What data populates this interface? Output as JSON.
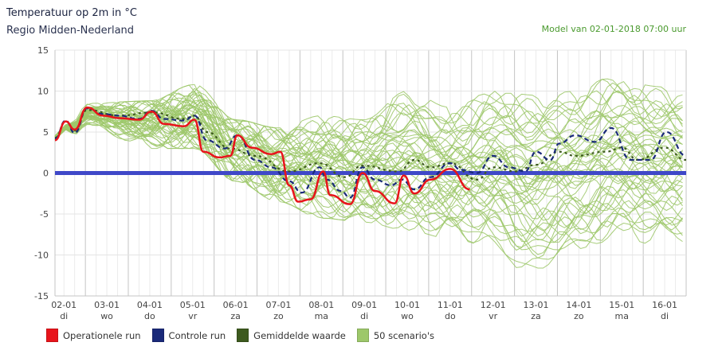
{
  "header": {
    "title": "Temperatuur op 2m in °C",
    "subtitle": "Regio Midden-Nederland",
    "model_run": "Model van 02-01-2018 07:00 uur"
  },
  "chart_data": {
    "type": "line",
    "ylim": [
      -15,
      15
    ],
    "yticks": [
      15,
      10,
      5,
      0,
      -5,
      -10,
      -15
    ],
    "xlim": [
      "02-01 07:00",
      "17-01 00:00"
    ],
    "grid": true,
    "legend_placement": "bottom-left",
    "xticks": [
      {
        "date": "02-01",
        "day": "di"
      },
      {
        "date": "03-01",
        "day": "wo"
      },
      {
        "date": "04-01",
        "day": "do"
      },
      {
        "date": "05-01",
        "day": "vr"
      },
      {
        "date": "06-01",
        "day": "za"
      },
      {
        "date": "07-01",
        "day": "zo"
      },
      {
        "date": "08-01",
        "day": "ma"
      },
      {
        "date": "09-01",
        "day": "di"
      },
      {
        "date": "10-01",
        "day": "wo"
      },
      {
        "date": "11-01",
        "day": "do"
      },
      {
        "date": "12-01",
        "day": "vr"
      },
      {
        "date": "13-01",
        "day": "za"
      },
      {
        "date": "14-01",
        "day": "zo"
      },
      {
        "date": "15-01",
        "day": "ma"
      },
      {
        "date": "16-01",
        "day": "di"
      }
    ],
    "reference_line": {
      "y": 0,
      "color": "#3f48c8"
    },
    "series": [
      {
        "name": "Operationele run",
        "color": "#e8141b",
        "style": "solid",
        "points": [
          [
            "02-01 07:00",
            4
          ],
          [
            "02-01 13:00",
            6.3
          ],
          [
            "02-01 18:00",
            5.3
          ],
          [
            "03-01 01:00",
            8
          ],
          [
            "03-01 10:00",
            7
          ],
          [
            "03-01 19:00",
            6.7
          ],
          [
            "04-01 06:00",
            6.5
          ],
          [
            "04-01 13:00",
            7.5
          ],
          [
            "04-01 20:00",
            6
          ],
          [
            "05-01 07:00",
            5.7
          ],
          [
            "05-01 13:00",
            6.5
          ],
          [
            "05-01 18:00",
            2.6
          ],
          [
            "06-01 03:00",
            1.9
          ],
          [
            "06-01 09:00",
            2.1
          ],
          [
            "06-01 13:00",
            4.6
          ],
          [
            "06-01 21:00",
            3.1
          ],
          [
            "07-01 08:00",
            2.3
          ],
          [
            "07-01 13:00",
            2.6
          ],
          [
            "07-01 18:00",
            -1.5
          ],
          [
            "07-01 23:00",
            -3.5
          ],
          [
            "08-01 06:00",
            -3.2
          ],
          [
            "08-01 13:00",
            0.2
          ],
          [
            "08-01 17:00",
            -2.7
          ],
          [
            "09-01 04:00",
            -3.8
          ],
          [
            "09-01 11:00",
            0
          ],
          [
            "09-01 18:00",
            -2.2
          ],
          [
            "10-01 05:00",
            -3.7
          ],
          [
            "10-01 10:00",
            -0.3
          ],
          [
            "10-01 16:00",
            -2.5
          ],
          [
            "11-01 01:00",
            -0.8
          ],
          [
            "11-01 12:00",
            0.5
          ],
          [
            "11-01 23:00",
            -2
          ]
        ]
      },
      {
        "name": "Controle run",
        "color": "#1a2a7a",
        "style": "dashed",
        "points": [
          [
            "02-01 07:00",
            4.2
          ],
          [
            "02-01 13:00",
            6.4
          ],
          [
            "02-01 18:00",
            4.9
          ],
          [
            "03-01 01:00",
            7.9
          ],
          [
            "03-01 10:00",
            7.2
          ],
          [
            "03-01 19:00",
            7
          ],
          [
            "04-01 06:00",
            6.6
          ],
          [
            "04-01 13:00",
            7.6
          ],
          [
            "04-01 20:00",
            6.6
          ],
          [
            "05-01 07:00",
            6.4
          ],
          [
            "05-01 13:00",
            7
          ],
          [
            "05-01 20:00",
            4
          ],
          [
            "06-01 06:00",
            3
          ],
          [
            "06-01 13:00",
            4.6
          ],
          [
            "06-01 23:00",
            1.6
          ],
          [
            "07-01 08:00",
            0.7
          ],
          [
            "07-01 18:00",
            -1
          ],
          [
            "08-01 01:00",
            -2.4
          ],
          [
            "08-01 11:00",
            0.7
          ],
          [
            "08-01 15:00",
            -0.8
          ],
          [
            "08-01 23:00",
            -2.2
          ],
          [
            "09-01 04:00",
            -3
          ],
          [
            "09-01 11:00",
            0.7
          ],
          [
            "09-01 18:00",
            -0.8
          ],
          [
            "10-01 03:00",
            -1.5
          ],
          [
            "10-01 09:00",
            -0.8
          ],
          [
            "10-01 16:00",
            -2
          ],
          [
            "11-01 01:00",
            -0.5
          ],
          [
            "11-01 12:00",
            1.2
          ],
          [
            "11-01 18:00",
            0.4
          ],
          [
            "12-01 03:00",
            0
          ],
          [
            "12-01 12:00",
            2.1
          ],
          [
            "12-01 21:00",
            0.7
          ],
          [
            "13-01 06:00",
            0.2
          ],
          [
            "13-01 12:00",
            2.6
          ],
          [
            "13-01 20:00",
            1.6
          ],
          [
            "14-01 01:00",
            3.6
          ],
          [
            "14-01 10:00",
            4.6
          ],
          [
            "14-01 21:00",
            3.8
          ],
          [
            "15-01 06:00",
            5.5
          ],
          [
            "15-01 17:00",
            1.6
          ],
          [
            "16-01 04:00",
            1.6
          ],
          [
            "16-01 13:00",
            5
          ],
          [
            "17-01 00:00",
            2.1
          ]
        ]
      },
      {
        "name": "Gemiddelde waarde",
        "color": "#3d5a1e",
        "style": "dotted",
        "points": [
          [
            "02-01 07:00",
            4.3
          ],
          [
            "02-01 13:00",
            6.3
          ],
          [
            "02-01 18:00",
            5.2
          ],
          [
            "03-01 01:00",
            7.7
          ],
          [
            "03-01 19:00",
            7
          ],
          [
            "04-01 13:00",
            7.4
          ],
          [
            "05-01 07:00",
            6.6
          ],
          [
            "05-01 13:00",
            7
          ],
          [
            "05-01 20:00",
            5
          ],
          [
            "06-01 09:00",
            3
          ],
          [
            "06-01 23:00",
            2.1
          ],
          [
            "07-01 18:00",
            0.2
          ],
          [
            "08-01 11:00",
            1.2
          ],
          [
            "09-01 01:00",
            -0.5
          ],
          [
            "09-01 11:00",
            0.9
          ],
          [
            "10-01 07:00",
            0.2
          ],
          [
            "10-01 16:00",
            1.6
          ],
          [
            "11-01 01:00",
            0.7
          ],
          [
            "11-01 12:00",
            1.2
          ],
          [
            "12-01 03:00",
            -0.8
          ],
          [
            "12-01 12:00",
            0.7
          ],
          [
            "13-01 01:00",
            0.2
          ],
          [
            "13-01 12:00",
            1
          ],
          [
            "14-01 01:00",
            2.6
          ],
          [
            "14-01 10:00",
            2.1
          ],
          [
            "15-01 03:00",
            2.6
          ],
          [
            "15-01 12:00",
            3.1
          ],
          [
            "15-01 21:00",
            1.6
          ],
          [
            "16-01 12:00",
            3.1
          ],
          [
            "17-01 00:00",
            1.6
          ]
        ]
      },
      {
        "name": "50 scenario's",
        "color": "#9dc86a",
        "style": "solid",
        "members": 50,
        "envelope_max": [
          [
            "02-01 07:00",
            5
          ],
          [
            "03-01 01:00",
            8.5
          ],
          [
            "04-01 12:00",
            8.8
          ],
          [
            "05-01 13:00",
            10.8
          ],
          [
            "06-01 12:00",
            6.5
          ],
          [
            "07-01 12:00",
            5.5
          ],
          [
            "08-01 12:00",
            7
          ],
          [
            "09-01 12:00",
            6.5
          ],
          [
            "10-01 12:00",
            10
          ],
          [
            "11-01 12:00",
            8
          ],
          [
            "12-01 12:00",
            10
          ],
          [
            "13-01 12:00",
            9.5
          ],
          [
            "14-01 12:00",
            10
          ],
          [
            "15-01 03:00",
            11.5
          ],
          [
            "16-01 12:00",
            10.5
          ],
          [
            "17-01 00:00",
            10
          ]
        ],
        "envelope_min": [
          [
            "02-01 07:00",
            3.5
          ],
          [
            "03-01 01:00",
            5
          ],
          [
            "04-01 12:00",
            3
          ],
          [
            "05-01 13:00",
            3
          ],
          [
            "06-01 12:00",
            -1
          ],
          [
            "07-01 12:00",
            -3.5
          ],
          [
            "08-01 12:00",
            -5.5
          ],
          [
            "09-01 12:00",
            -6
          ],
          [
            "10-01 12:00",
            -7
          ],
          [
            "11-01 12:00",
            -8
          ],
          [
            "12-01 12:00",
            -9
          ],
          [
            "13-01 08:00",
            -12.5
          ],
          [
            "14-01 12:00",
            -10
          ],
          [
            "15-01 12:00",
            -8
          ],
          [
            "16-01 12:00",
            -9
          ],
          [
            "17-01 00:00",
            -8.5
          ]
        ]
      }
    ]
  },
  "legend": [
    {
      "label": "Operationele run",
      "color": "#e8141b"
    },
    {
      "label": "Controle run",
      "color": "#1a2a7a"
    },
    {
      "label": "Gemiddelde waarde",
      "color": "#3d5a1e"
    },
    {
      "label": "50 scenario's",
      "color": "#9dc86a"
    }
  ]
}
